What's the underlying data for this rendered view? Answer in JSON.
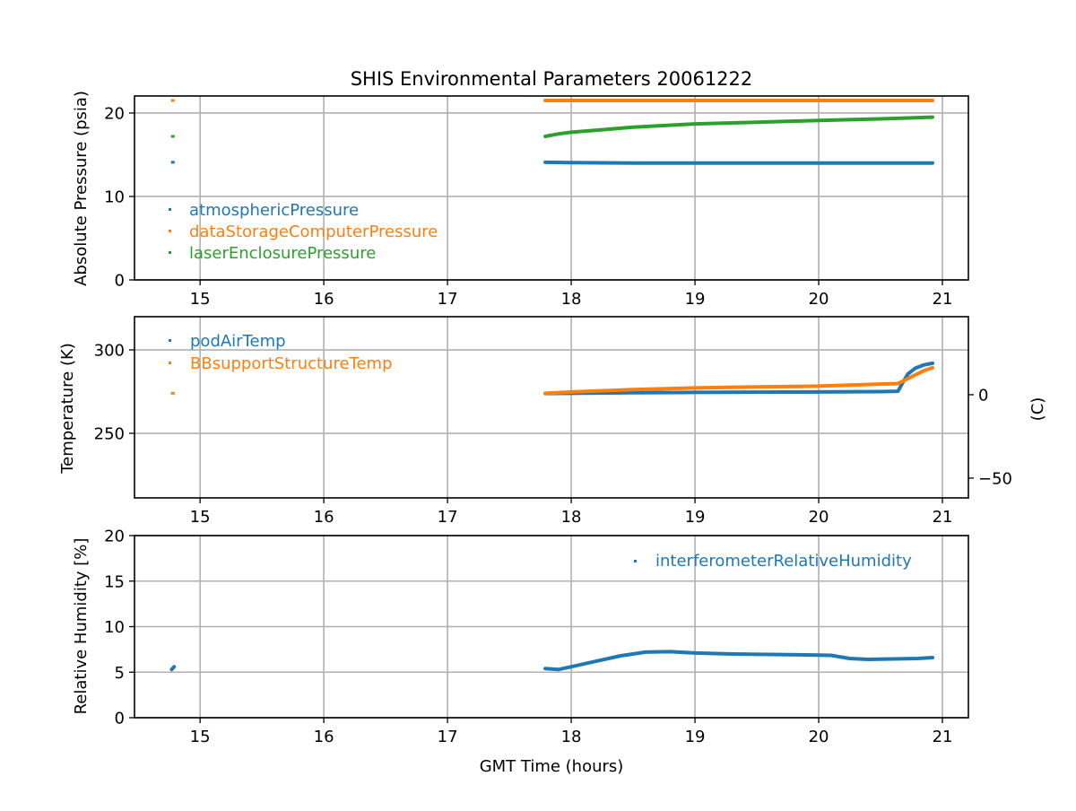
{
  "chart_data": [
    {
      "type": "scatter",
      "title": "SHIS Environmental Parameters 20061222",
      "xlabel": "",
      "ylabel": "Absolute Pressure (psia)",
      "xlim": [
        14.47,
        21.21
      ],
      "ylim": [
        0,
        22.04
      ],
      "xticks": [
        15,
        16,
        17,
        18,
        19,
        20,
        21
      ],
      "yticks": [
        0,
        10,
        20
      ],
      "grid": true,
      "legend": "center-left",
      "series": [
        {
          "name": "atmosphericPressure",
          "color": "#1f77b4",
          "x": [
            14.78,
            17.79,
            18.0,
            18.5,
            19.0,
            19.5,
            20.0,
            20.5,
            20.92
          ],
          "y": [
            14.1,
            14.1,
            14.05,
            14.0,
            14.0,
            14.0,
            14.0,
            14.0,
            14.0
          ],
          "gaps_after_index": [
            0
          ]
        },
        {
          "name": "dataStorageComputerPressure",
          "color": "#ff7f0e",
          "x": [
            14.78,
            17.79,
            18.0,
            18.5,
            19.0,
            19.5,
            20.0,
            20.5,
            20.92
          ],
          "y": [
            21.5,
            21.5,
            21.5,
            21.5,
            21.5,
            21.5,
            21.5,
            21.5,
            21.5
          ],
          "gaps_after_index": [
            0
          ]
        },
        {
          "name": "laserEnclosurePressure",
          "color": "#2ca02c",
          "x": [
            14.78,
            17.79,
            17.9,
            18.0,
            18.25,
            18.5,
            19.0,
            19.5,
            20.0,
            20.5,
            20.92
          ],
          "y": [
            17.2,
            17.2,
            17.5,
            17.7,
            18.0,
            18.3,
            18.7,
            18.9,
            19.1,
            19.3,
            19.5
          ],
          "gaps_after_index": [
            0
          ]
        }
      ]
    },
    {
      "type": "scatter",
      "ylabel": "Temperature (K)",
      "y2label": "(C)",
      "xlim": [
        14.47,
        21.21
      ],
      "ylim": [
        211.3,
        319.9
      ],
      "xticks": [
        15,
        16,
        17,
        18,
        19,
        20,
        21
      ],
      "yticks": [
        250,
        300
      ],
      "y2ticks": [
        -50,
        0
      ],
      "y2ticklabels": [
        "−50",
        "0"
      ],
      "grid": true,
      "legend": "top-left",
      "series": [
        {
          "name": "podAirTemp",
          "color": "#1f77b4",
          "x": [
            17.79,
            18.0,
            18.5,
            19.0,
            19.5,
            20.0,
            20.5,
            20.64,
            20.68,
            20.72,
            20.78,
            20.85,
            20.92
          ],
          "y": [
            273.9,
            274.0,
            274.3,
            274.5,
            274.7,
            274.8,
            275.0,
            275.2,
            280.5,
            285.5,
            289.0,
            291.0,
            292.0
          ],
          "gaps_after_index": []
        },
        {
          "name": "BBsupportStructureTemp",
          "color": "#ff7f0e",
          "x": [
            14.78,
            17.79,
            18.0,
            18.5,
            19.0,
            19.5,
            20.0,
            20.5,
            20.64,
            20.7,
            20.78,
            20.85,
            20.92
          ],
          "y": [
            274.0,
            274.0,
            274.8,
            276.2,
            277.2,
            277.8,
            278.3,
            279.5,
            279.8,
            282.0,
            285.0,
            287.5,
            289.3
          ],
          "gaps_after_index": [
            0
          ]
        }
      ]
    },
    {
      "type": "scatter",
      "xlabel": "GMT Time (hours)",
      "ylabel": "Relative Humidity [%]",
      "xlim": [
        14.47,
        21.21
      ],
      "ylim": [
        0,
        20
      ],
      "xticks": [
        15,
        16,
        17,
        18,
        19,
        20,
        21
      ],
      "yticks": [
        0,
        5,
        10,
        15,
        20
      ],
      "grid": true,
      "legend": "top-right",
      "series": [
        {
          "name": "interferometerRelativeHumidity",
          "color": "#1f77b4",
          "x": [
            14.77,
            14.79,
            17.79,
            17.9,
            18.0,
            18.2,
            18.4,
            18.6,
            18.8,
            19.0,
            19.3,
            19.6,
            19.9,
            20.1,
            20.25,
            20.4,
            20.6,
            20.8,
            20.92
          ],
          "y": [
            5.3,
            5.6,
            5.4,
            5.3,
            5.6,
            6.2,
            6.8,
            7.2,
            7.25,
            7.1,
            7.0,
            6.95,
            6.9,
            6.85,
            6.5,
            6.4,
            6.45,
            6.5,
            6.6
          ],
          "gaps_after_index": [
            1
          ]
        }
      ]
    }
  ]
}
